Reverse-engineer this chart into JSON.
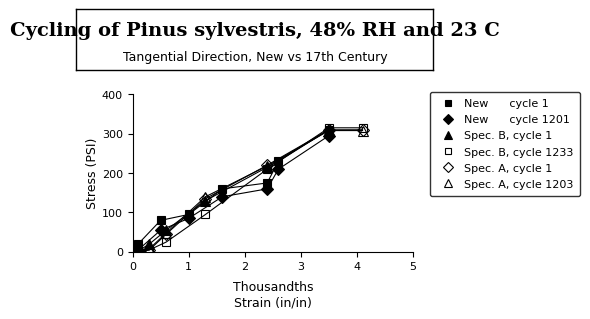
{
  "title": "Cycling of Pinus sylvestris, 48% RH and 23 C",
  "subtitle": "Tangential Direction, New vs 17th Century",
  "xlabel": "Strain (in/in)",
  "xlabel_top": "Thousandths",
  "ylabel": "Stress (PSI)",
  "xlim": [
    0,
    5
  ],
  "ylim": [
    0,
    400
  ],
  "xticks": [
    0,
    1,
    2,
    3,
    4,
    5
  ],
  "yticks": [
    0,
    100,
    200,
    300,
    400
  ],
  "series": [
    {
      "label": "New      cycle 1",
      "marker": "s",
      "color": "black",
      "fillstyle": "full",
      "markersize": 6,
      "x": [
        0.1,
        0.5,
        1.0,
        1.6,
        2.4,
        2.6,
        3.5
      ],
      "y": [
        20,
        80,
        95,
        160,
        175,
        230,
        310
      ]
    },
    {
      "label": "New      cycle 1201",
      "marker": "D",
      "color": "black",
      "fillstyle": "full",
      "markersize": 6,
      "x": [
        0.1,
        0.5,
        1.0,
        1.6,
        2.4,
        2.6,
        3.5
      ],
      "y": [
        5,
        55,
        85,
        140,
        160,
        210,
        295
      ]
    },
    {
      "label": "Spec. B, cycle 1",
      "marker": "^",
      "color": "black",
      "fillstyle": "full",
      "markersize": 7,
      "x": [
        0.1,
        0.3,
        0.6,
        1.3,
        2.4,
        3.5
      ],
      "y": [
        2,
        20,
        55,
        130,
        215,
        310
      ]
    },
    {
      "label": "Spec. B, cycle 1233",
      "marker": "s",
      "color": "white",
      "fillstyle": "none",
      "markeredgecolor": "black",
      "markersize": 6,
      "x": [
        0.1,
        0.3,
        0.6,
        1.3,
        2.4,
        3.5,
        4.1
      ],
      "y": [
        0,
        5,
        25,
        95,
        210,
        315,
        315
      ]
    },
    {
      "label": "Spec. A, cycle 1",
      "marker": "D",
      "color": "white",
      "fillstyle": "none",
      "markeredgecolor": "black",
      "markersize": 6,
      "x": [
        0.1,
        0.3,
        0.6,
        1.3,
        2.4,
        3.5,
        4.1
      ],
      "y": [
        0,
        5,
        45,
        135,
        220,
        310,
        310
      ]
    },
    {
      "label": "Spec. A, cycle 1203",
      "marker": "^",
      "color": "white",
      "fillstyle": "none",
      "markeredgecolor": "black",
      "markersize": 7,
      "x": [
        0.1,
        0.3,
        0.6,
        1.3,
        2.4,
        3.5,
        4.1
      ],
      "y": [
        0,
        8,
        48,
        140,
        218,
        308,
        308
      ]
    }
  ],
  "background_color": "#ffffff",
  "legend_fontsize": 8,
  "title_fontsize": 14,
  "subtitle_fontsize": 9
}
